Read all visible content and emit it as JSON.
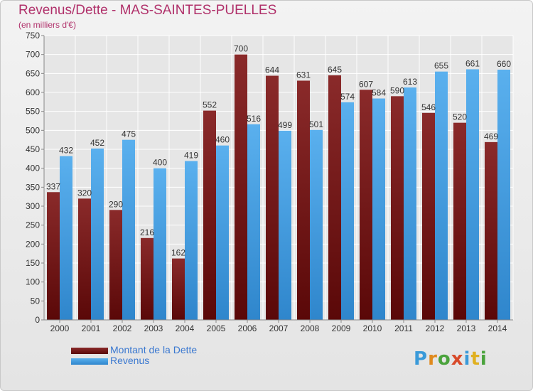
{
  "title": "Revenus/Dette - MAS-SAINTES-PUELLES",
  "subtitle": "(en milliers d'€)",
  "logo": [
    "P",
    "r",
    "o",
    "x",
    "i",
    "t",
    "i"
  ],
  "logo_colors": [
    "#3a9ad9",
    "#e08a1e",
    "#4aa33c",
    "#d84a2a",
    "#3a9ad9",
    "#e0b020",
    "#4aa33c"
  ],
  "legend": [
    {
      "label": "Montant de la Dette",
      "color": "#7a1a1a"
    },
    {
      "label": "Revenus",
      "color": "#4da3e6"
    }
  ],
  "chart_data": {
    "type": "bar",
    "categories": [
      "2000",
      "2001",
      "2002",
      "2003",
      "2004",
      "2005",
      "2006",
      "2007",
      "2008",
      "2009",
      "2010",
      "2011",
      "2012",
      "2013",
      "2014"
    ],
    "series": [
      {
        "name": "Montant de la Dette",
        "color": "#7a1a1a",
        "values": [
          337,
          320,
          290,
          216,
          162,
          552,
          700,
          644,
          631,
          645,
          607,
          590,
          546,
          520,
          469
        ]
      },
      {
        "name": "Revenus",
        "color": "#4da3e6",
        "values": [
          432,
          452,
          475,
          400,
          419,
          460,
          516,
          499,
          501,
          574,
          584,
          613,
          655,
          661,
          660
        ]
      }
    ],
    "ylim": [
      0,
      750
    ],
    "yticks": [
      0,
      50,
      100,
      150,
      200,
      250,
      300,
      350,
      400,
      450,
      500,
      550,
      600,
      650,
      700,
      750
    ],
    "grid": true,
    "legend_position": "bottom-left"
  }
}
